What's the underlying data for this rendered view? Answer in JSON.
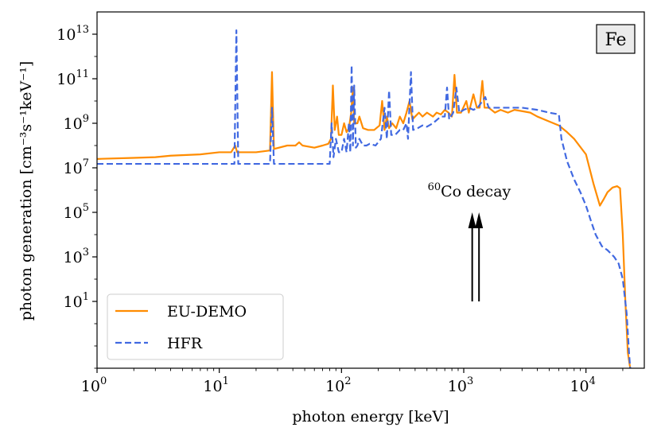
{
  "chart_data": {
    "type": "line",
    "title": "",
    "xlabel": "photon energy [keV]",
    "ylabel": "photon generation [cm⁻³s⁻¹keV⁻¹]",
    "x_scale": "log",
    "y_scale": "log",
    "xlim": [
      1,
      30000
    ],
    "ylim": [
      0.01,
      100000000000000.0
    ],
    "x_ticks": [
      {
        "base": "10",
        "exp": "0",
        "value": 1
      },
      {
        "base": "10",
        "exp": "1",
        "value": 10
      },
      {
        "base": "10",
        "exp": "2",
        "value": 100
      },
      {
        "base": "10",
        "exp": "3",
        "value": 1000
      },
      {
        "base": "10",
        "exp": "4",
        "value": 10000
      }
    ],
    "y_ticks": [
      {
        "base": "10",
        "exp": "1",
        "value": 10
      },
      {
        "base": "10",
        "exp": "3",
        "value": 1000
      },
      {
        "base": "10",
        "exp": "5",
        "value": 100000
      },
      {
        "base": "10",
        "exp": "7",
        "value": 10000000
      },
      {
        "base": "10",
        "exp": "9",
        "value": 1000000000
      },
      {
        "base": "10",
        "exp": "11",
        "value": 100000000000
      },
      {
        "base": "10",
        "exp": "13",
        "value": 10000000000000
      }
    ],
    "grid": false,
    "legend_position": "lower-left",
    "material_label": "Fe",
    "series": [
      {
        "name": "EU-DEMO",
        "color": "#ff8c00",
        "style": "solid",
        "points": [
          [
            1,
            25000000.0
          ],
          [
            2,
            28000000.0
          ],
          [
            3,
            30000000.0
          ],
          [
            4,
            35000000.0
          ],
          [
            7,
            40000000.0
          ],
          [
            10,
            50000000.0
          ],
          [
            12.5,
            50000000.0
          ],
          [
            13.5,
            100000000.0
          ],
          [
            14,
            50000000.0
          ],
          [
            20,
            50000000.0
          ],
          [
            26,
            60000000.0
          ],
          [
            27,
            200000000000.0
          ],
          [
            28,
            70000000.0
          ],
          [
            36,
            100000000.0
          ],
          [
            42,
            100000000.0
          ],
          [
            45,
            140000000.0
          ],
          [
            48,
            100000000.0
          ],
          [
            60,
            80000000.0
          ],
          [
            70,
            100000000.0
          ],
          [
            78,
            120000000.0
          ],
          [
            82,
            200000000.0
          ],
          [
            85,
            50000000000.0
          ],
          [
            88,
            500000000.0
          ],
          [
            92,
            2000000000.0
          ],
          [
            95,
            300000000.0
          ],
          [
            100,
            300000000.0
          ],
          [
            105,
            1000000000.0
          ],
          [
            110,
            400000000.0
          ],
          [
            115,
            600000000.0
          ],
          [
            120,
            3000000000.0
          ],
          [
            124,
            40000000000.0
          ],
          [
            127,
            1000000000.0
          ],
          [
            135,
            1000000000.0
          ],
          [
            140,
            2000000000.0
          ],
          [
            150,
            600000000.0
          ],
          [
            165,
            500000000.0
          ],
          [
            185,
            500000000.0
          ],
          [
            205,
            800000000.0
          ],
          [
            215,
            10000000000.0
          ],
          [
            225,
            500000000.0
          ],
          [
            235,
            2000000000.0
          ],
          [
            245,
            600000000.0
          ],
          [
            260,
            1000000000.0
          ],
          [
            280,
            600000000.0
          ],
          [
            300,
            2000000000.0
          ],
          [
            320,
            1000000000.0
          ],
          [
            340,
            3000000000.0
          ],
          [
            360,
            10000000000.0
          ],
          [
            380,
            1500000000.0
          ],
          [
            400,
            2000000000.0
          ],
          [
            430,
            3000000000.0
          ],
          [
            460,
            2000000000.0
          ],
          [
            500,
            3000000000.0
          ],
          [
            560,
            2000000000.0
          ],
          [
            600,
            3000000000.0
          ],
          [
            650,
            2500000000.0
          ],
          [
            700,
            4000000000.0
          ],
          [
            750,
            3000000000.0
          ],
          [
            800,
            2000000000.0
          ],
          [
            840,
            150000000000.0
          ],
          [
            880,
            3000000000.0
          ],
          [
            950,
            3000000000.0
          ],
          [
            1050,
            10000000000.0
          ],
          [
            1100,
            3000000000.0
          ],
          [
            1200,
            20000000000.0
          ],
          [
            1280,
            5000000000.0
          ],
          [
            1350,
            5000000000.0
          ],
          [
            1420,
            80000000000.0
          ],
          [
            1480,
            5000000000.0
          ],
          [
            1600,
            5000000000.0
          ],
          [
            1800,
            3000000000.0
          ],
          [
            2000,
            4000000000.0
          ],
          [
            2300,
            3000000000.0
          ],
          [
            2600,
            4000000000.0
          ],
          [
            3000,
            3500000000.0
          ],
          [
            3500,
            3000000000.0
          ],
          [
            4000,
            2000000000.0
          ],
          [
            5000,
            1200000000.0
          ],
          [
            6000,
            800000000.0
          ],
          [
            7000,
            400000000.0
          ],
          [
            8000,
            200000000.0
          ],
          [
            10000,
            40000000.0
          ],
          [
            11500,
            2000000.0
          ],
          [
            13000,
            200000.0
          ],
          [
            14000,
            400000.0
          ],
          [
            15000,
            800000.0
          ],
          [
            16500,
            1300000.0
          ],
          [
            18000,
            1500000.0
          ],
          [
            19000,
            1200000.0
          ],
          [
            20000,
            10000.0
          ],
          [
            21000,
            10
          ],
          [
            22000,
            0.05
          ],
          [
            23000,
            0.01
          ]
        ]
      },
      {
        "name": "HFR",
        "color": "#4169e1",
        "style": "dashed",
        "points": [
          [
            1,
            15000000.0
          ],
          [
            5,
            15000000.0
          ],
          [
            10,
            15000000.0
          ],
          [
            13.3,
            15000000.0
          ],
          [
            13.8,
            15000000000000.0
          ],
          [
            14.3,
            15000000.0
          ],
          [
            26,
            15000000.0
          ],
          [
            27,
            5000000000.0
          ],
          [
            28,
            15000000.0
          ],
          [
            50,
            15000000.0
          ],
          [
            80,
            15000000.0
          ],
          [
            83,
            1000000000.0
          ],
          [
            86,
            30000000.0
          ],
          [
            90,
            200000000.0
          ],
          [
            95,
            50000000.0
          ],
          [
            100,
            50000000.0
          ],
          [
            105,
            200000000.0
          ],
          [
            110,
            50000000.0
          ],
          [
            115,
            1000000000.0
          ],
          [
            118,
            50000000.0
          ],
          [
            121,
            400000000000.0
          ],
          [
            124,
            100000000.0
          ],
          [
            127,
            50000000000.0
          ],
          [
            131,
            80000000.0
          ],
          [
            135,
            100000000.0
          ],
          [
            140,
            200000000.0
          ],
          [
            150,
            100000000.0
          ],
          [
            160,
            100000000.0
          ],
          [
            170,
            120000000.0
          ],
          [
            190,
            100000000.0
          ],
          [
            210,
            200000000.0
          ],
          [
            225,
            5000000000.0
          ],
          [
            235,
            200000000.0
          ],
          [
            245,
            30000000000.0
          ],
          [
            255,
            300000000.0
          ],
          [
            275,
            300000000.0
          ],
          [
            300,
            500000000.0
          ],
          [
            320,
            500000000.0
          ],
          [
            340,
            1000000000.0
          ],
          [
            350,
            200000000.0
          ],
          [
            370,
            200000000000.0
          ],
          [
            385,
            500000000.0
          ],
          [
            420,
            600000000.0
          ],
          [
            460,
            800000000.0
          ],
          [
            500,
            700000000.0
          ],
          [
            560,
            1000000000.0
          ],
          [
            610,
            1500000000.0
          ],
          [
            650,
            2000000000.0
          ],
          [
            700,
            2000000000.0
          ],
          [
            730,
            40000000000.0
          ],
          [
            760,
            1500000000.0
          ],
          [
            820,
            3000000000.0
          ],
          [
            870,
            40000000000.0
          ],
          [
            920,
            3000000000.0
          ],
          [
            1000,
            4000000000.0
          ],
          [
            1100,
            5000000000.0
          ],
          [
            1200,
            4000000000.0
          ],
          [
            1300,
            5000000000.0
          ],
          [
            1500,
            15000000000.0
          ],
          [
            1600,
            5000000000.0
          ],
          [
            2000,
            5000000000.0
          ],
          [
            3000,
            5000000000.0
          ],
          [
            4000,
            4000000000.0
          ],
          [
            5000,
            3000000000.0
          ],
          [
            6000,
            2500000000.0
          ],
          [
            6300,
            200000000.0
          ],
          [
            7000,
            20000000.0
          ],
          [
            8000,
            3000000.0
          ],
          [
            9000,
            800000.0
          ],
          [
            10000,
            200000.0
          ],
          [
            11000,
            40000.0
          ],
          [
            12000,
            10000.0
          ],
          [
            13500,
            3000.0
          ],
          [
            15000,
            2000.0
          ],
          [
            17000,
            1000.0
          ],
          [
            18500,
            500.0
          ],
          [
            20000,
            100.0
          ],
          [
            21500,
            3
          ],
          [
            22500,
            0.05
          ],
          [
            23000,
            0.01
          ]
        ]
      }
    ],
    "annotations": [
      {
        "text_sup": "60",
        "text": "Co decay",
        "arrows_at_keV": [
          1173,
          1333
        ],
        "arrow_from": 10,
        "arrow_to": 100000.0
      }
    ]
  }
}
